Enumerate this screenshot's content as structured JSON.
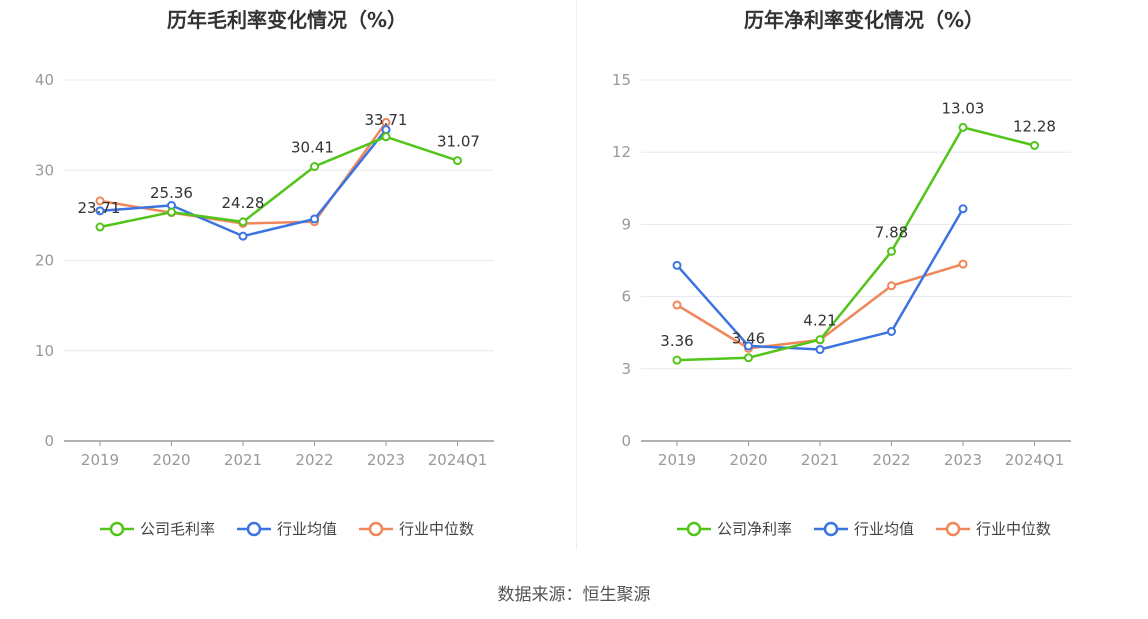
{
  "colors": {
    "company": "#52c41a",
    "industry_avg": "#3b74e0",
    "industry_median": "#f0865a",
    "axis": "#999999",
    "grid": "#e6e8f0"
  },
  "chart_data": [
    {
      "type": "line",
      "title": "历年毛利率变化情况（%）",
      "categories": [
        "2019",
        "2020",
        "2021",
        "2022",
        "2023",
        "2024Q1"
      ],
      "ylim": [
        0,
        40
      ],
      "yticks": [
        0,
        10,
        20,
        30,
        40
      ],
      "grid": true,
      "legend_position": "bottom",
      "series": [
        {
          "name": "公司毛利率",
          "key": "company",
          "values": [
            23.71,
            25.36,
            24.28,
            30.41,
            33.71,
            31.07
          ],
          "labels": [
            "23.71",
            "25.36",
            "24.28",
            "30.41",
            "33.71",
            "31.07"
          ]
        },
        {
          "name": "行业均值",
          "key": "industry_avg",
          "values": [
            25.5,
            26.1,
            22.7,
            24.6,
            34.5,
            null
          ]
        },
        {
          "name": "行业中位数",
          "key": "industry_median",
          "values": [
            26.6,
            25.3,
            24.1,
            24.3,
            35.3,
            null
          ]
        }
      ]
    },
    {
      "type": "line",
      "title": "历年净利率变化情况（%）",
      "categories": [
        "2019",
        "2020",
        "2021",
        "2022",
        "2023",
        "2024Q1"
      ],
      "ylim": [
        0,
        15
      ],
      "yticks": [
        0,
        3,
        6,
        9,
        12,
        15
      ],
      "grid": true,
      "legend_position": "bottom",
      "series": [
        {
          "name": "公司净利率",
          "key": "company",
          "values": [
            3.36,
            3.46,
            4.21,
            7.88,
            13.03,
            12.28
          ],
          "labels": [
            "3.36",
            "3.46",
            "4.21",
            "7.88",
            "13.03",
            "12.28"
          ]
        },
        {
          "name": "行业均值",
          "key": "industry_avg",
          "values": [
            7.3,
            3.95,
            3.8,
            4.55,
            9.65,
            null
          ]
        },
        {
          "name": "行业中位数",
          "key": "industry_median",
          "values": [
            5.65,
            3.85,
            4.2,
            6.45,
            7.35,
            null
          ]
        }
      ]
    }
  ],
  "source_text": "数据来源：恒生聚源"
}
